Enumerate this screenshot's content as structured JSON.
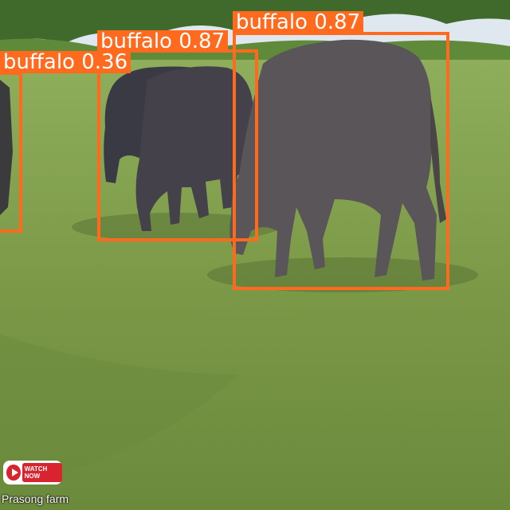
{
  "detections": [
    {
      "label": "buffalo 0.87",
      "class": "buffalo",
      "confidence": 0.87
    },
    {
      "label": "buffalo 0.87",
      "class": "buffalo",
      "confidence": 0.87
    },
    {
      "label": "buffalo 0.36",
      "class": "buffalo",
      "confidence": 0.36
    }
  ],
  "overlay": {
    "watch_now": "WATCH NOW",
    "channel": "Prasong farm"
  },
  "colors": {
    "box": "#ff6a1f",
    "grass": "#7d9a4a",
    "sky": "#dfe8ef"
  }
}
